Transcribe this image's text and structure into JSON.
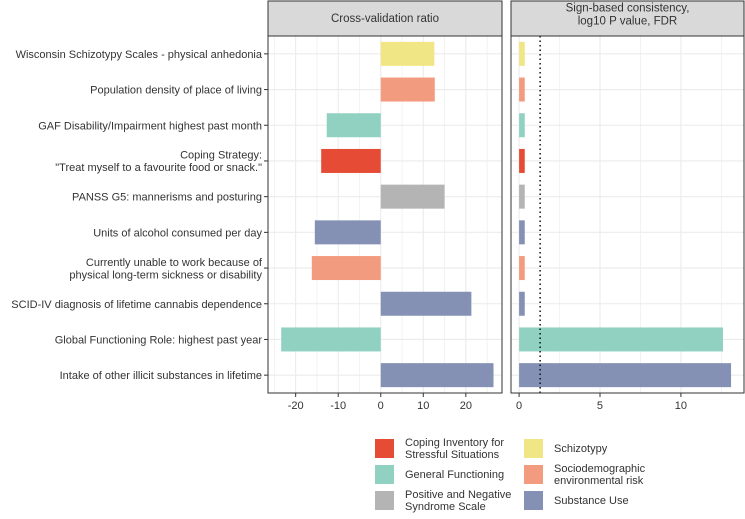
{
  "chart_data": [
    {
      "type": "bar",
      "orientation": "horizontal",
      "title": "Cross-validation ratio",
      "xlim": [
        -26.5,
        28.5
      ],
      "xticks": [
        -20,
        -10,
        0,
        10,
        20
      ],
      "xtick_labels": [
        "-20",
        "-10",
        "0",
        "10",
        "20"
      ],
      "grid": true,
      "categories": [
        "Wisconsin Schizotypy Scales - physical anhedonia",
        "Population density of place of living",
        "GAF Disability/Impairment highest past month",
        "Coping Strategy:\n\"Treat myself to a favourite food or snack.\"",
        "PANSS G5: mannerisms and posturing",
        "Units of alcohol consumed per day",
        "Currently unable to work because of\nphysical long-term sickness or disability",
        "SCID-IV diagnosis of lifetime cannabis dependence",
        "Global Functioning Role: highest past year",
        "Intake of other illicit substances in lifetime"
      ],
      "groups": [
        "Schizotypy",
        "Sociodemographic environmental risk",
        "General Functioning",
        "Coping Inventory for Stressful Situations",
        "Positive and Negative Syndrome Scale",
        "Substance Use",
        "Sociodemographic environmental risk",
        "Substance Use",
        "General Functioning",
        "Substance Use"
      ],
      "values": [
        12.6,
        12.7,
        -12.7,
        -14.0,
        15.0,
        -15.5,
        -16.2,
        21.3,
        -23.4,
        26.5
      ]
    },
    {
      "type": "bar",
      "orientation": "horizontal",
      "title": "Sign-based consistency,\nlog10 P value, FDR",
      "xlim": [
        -0.5,
        13.9
      ],
      "xticks": [
        0,
        5,
        10
      ],
      "xtick_labels": [
        "0",
        "5",
        "10"
      ],
      "grid": true,
      "reference_line": 1.3,
      "values": [
        0.35,
        0.35,
        0.35,
        0.35,
        0.35,
        0.35,
        0.35,
        0.35,
        12.6,
        13.1
      ]
    }
  ],
  "legend": {
    "placement": "bottom",
    "items": [
      {
        "label": "Coping Inventory for\nStressful Situations",
        "color": "#E64B35"
      },
      {
        "label": "General Functioning",
        "color": "#91D1C2"
      },
      {
        "label": "Positive and Negative\nSyndrome Scale",
        "color": "#B4B4B4"
      },
      {
        "label": "Schizotypy",
        "color": "#F0E685"
      },
      {
        "label": "Sociodemographic\nenvironmental risk",
        "color": "#F39B7F"
      },
      {
        "label": "Substance Use",
        "color": "#8491B4"
      }
    ]
  }
}
